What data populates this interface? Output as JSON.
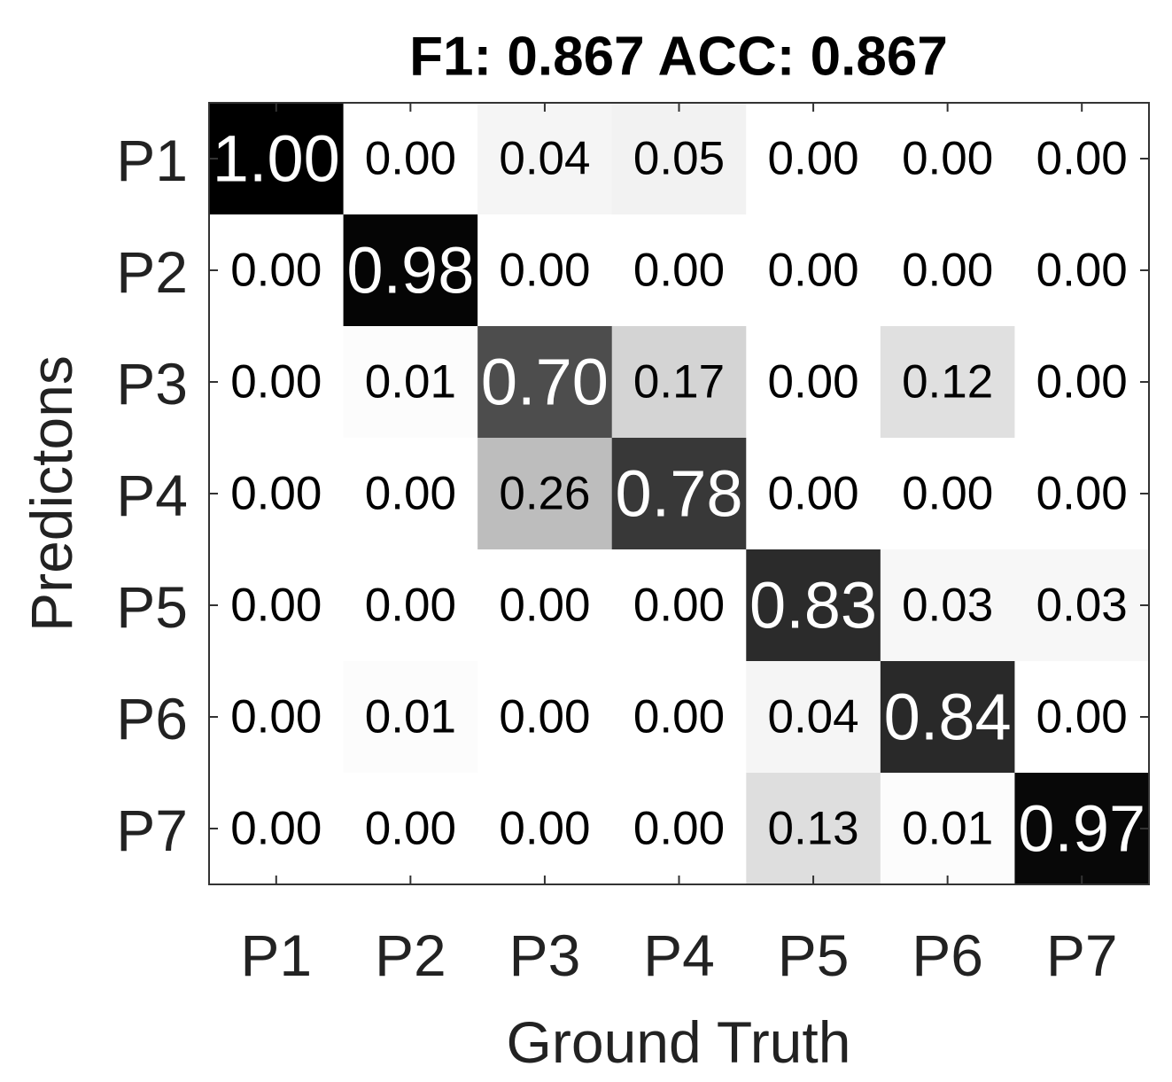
{
  "chart_data": {
    "type": "heatmap",
    "title": "F1: 0.867 ACC: 0.867",
    "x_label": "Ground Truth",
    "y_label": "Predictons",
    "x_categories": [
      "P1",
      "P2",
      "P3",
      "P4",
      "P5",
      "P6",
      "P7"
    ],
    "y_categories": [
      "P1",
      "P2",
      "P3",
      "P4",
      "P5",
      "P6",
      "P7"
    ],
    "values": [
      [
        1.0,
        0.0,
        0.04,
        0.05,
        0.0,
        0.0,
        0.0
      ],
      [
        0.0,
        0.98,
        0.0,
        0.0,
        0.0,
        0.0,
        0.0
      ],
      [
        0.0,
        0.01,
        0.7,
        0.17,
        0.0,
        0.12,
        0.0
      ],
      [
        0.0,
        0.0,
        0.26,
        0.78,
        0.0,
        0.0,
        0.0
      ],
      [
        0.0,
        0.0,
        0.0,
        0.0,
        0.83,
        0.03,
        0.03
      ],
      [
        0.0,
        0.01,
        0.0,
        0.0,
        0.04,
        0.84,
        0.0
      ],
      [
        0.0,
        0.0,
        0.0,
        0.0,
        0.13,
        0.01,
        0.97
      ]
    ],
    "value_labels": [
      [
        "1.00",
        "0.00",
        "0.04",
        "0.05",
        "0.00",
        "0.00",
        "0.00"
      ],
      [
        "0.00",
        "0.98",
        "0.00",
        "0.00",
        "0.00",
        "0.00",
        "0.00"
      ],
      [
        "0.00",
        "0.01",
        "0.70",
        "0.17",
        "0.00",
        "0.12",
        "0.00"
      ],
      [
        "0.00",
        "0.00",
        "0.26",
        "0.78",
        "0.00",
        "0.00",
        "0.00"
      ],
      [
        "0.00",
        "0.00",
        "0.00",
        "0.00",
        "0.83",
        "0.03",
        "0.03"
      ],
      [
        "0.00",
        "0.01",
        "0.00",
        "0.00",
        "0.04",
        "0.84",
        "0.00"
      ],
      [
        "0.00",
        "0.00",
        "0.00",
        "0.00",
        "0.13",
        "0.01",
        "0.97"
      ]
    ],
    "colormap": "gray"
  }
}
